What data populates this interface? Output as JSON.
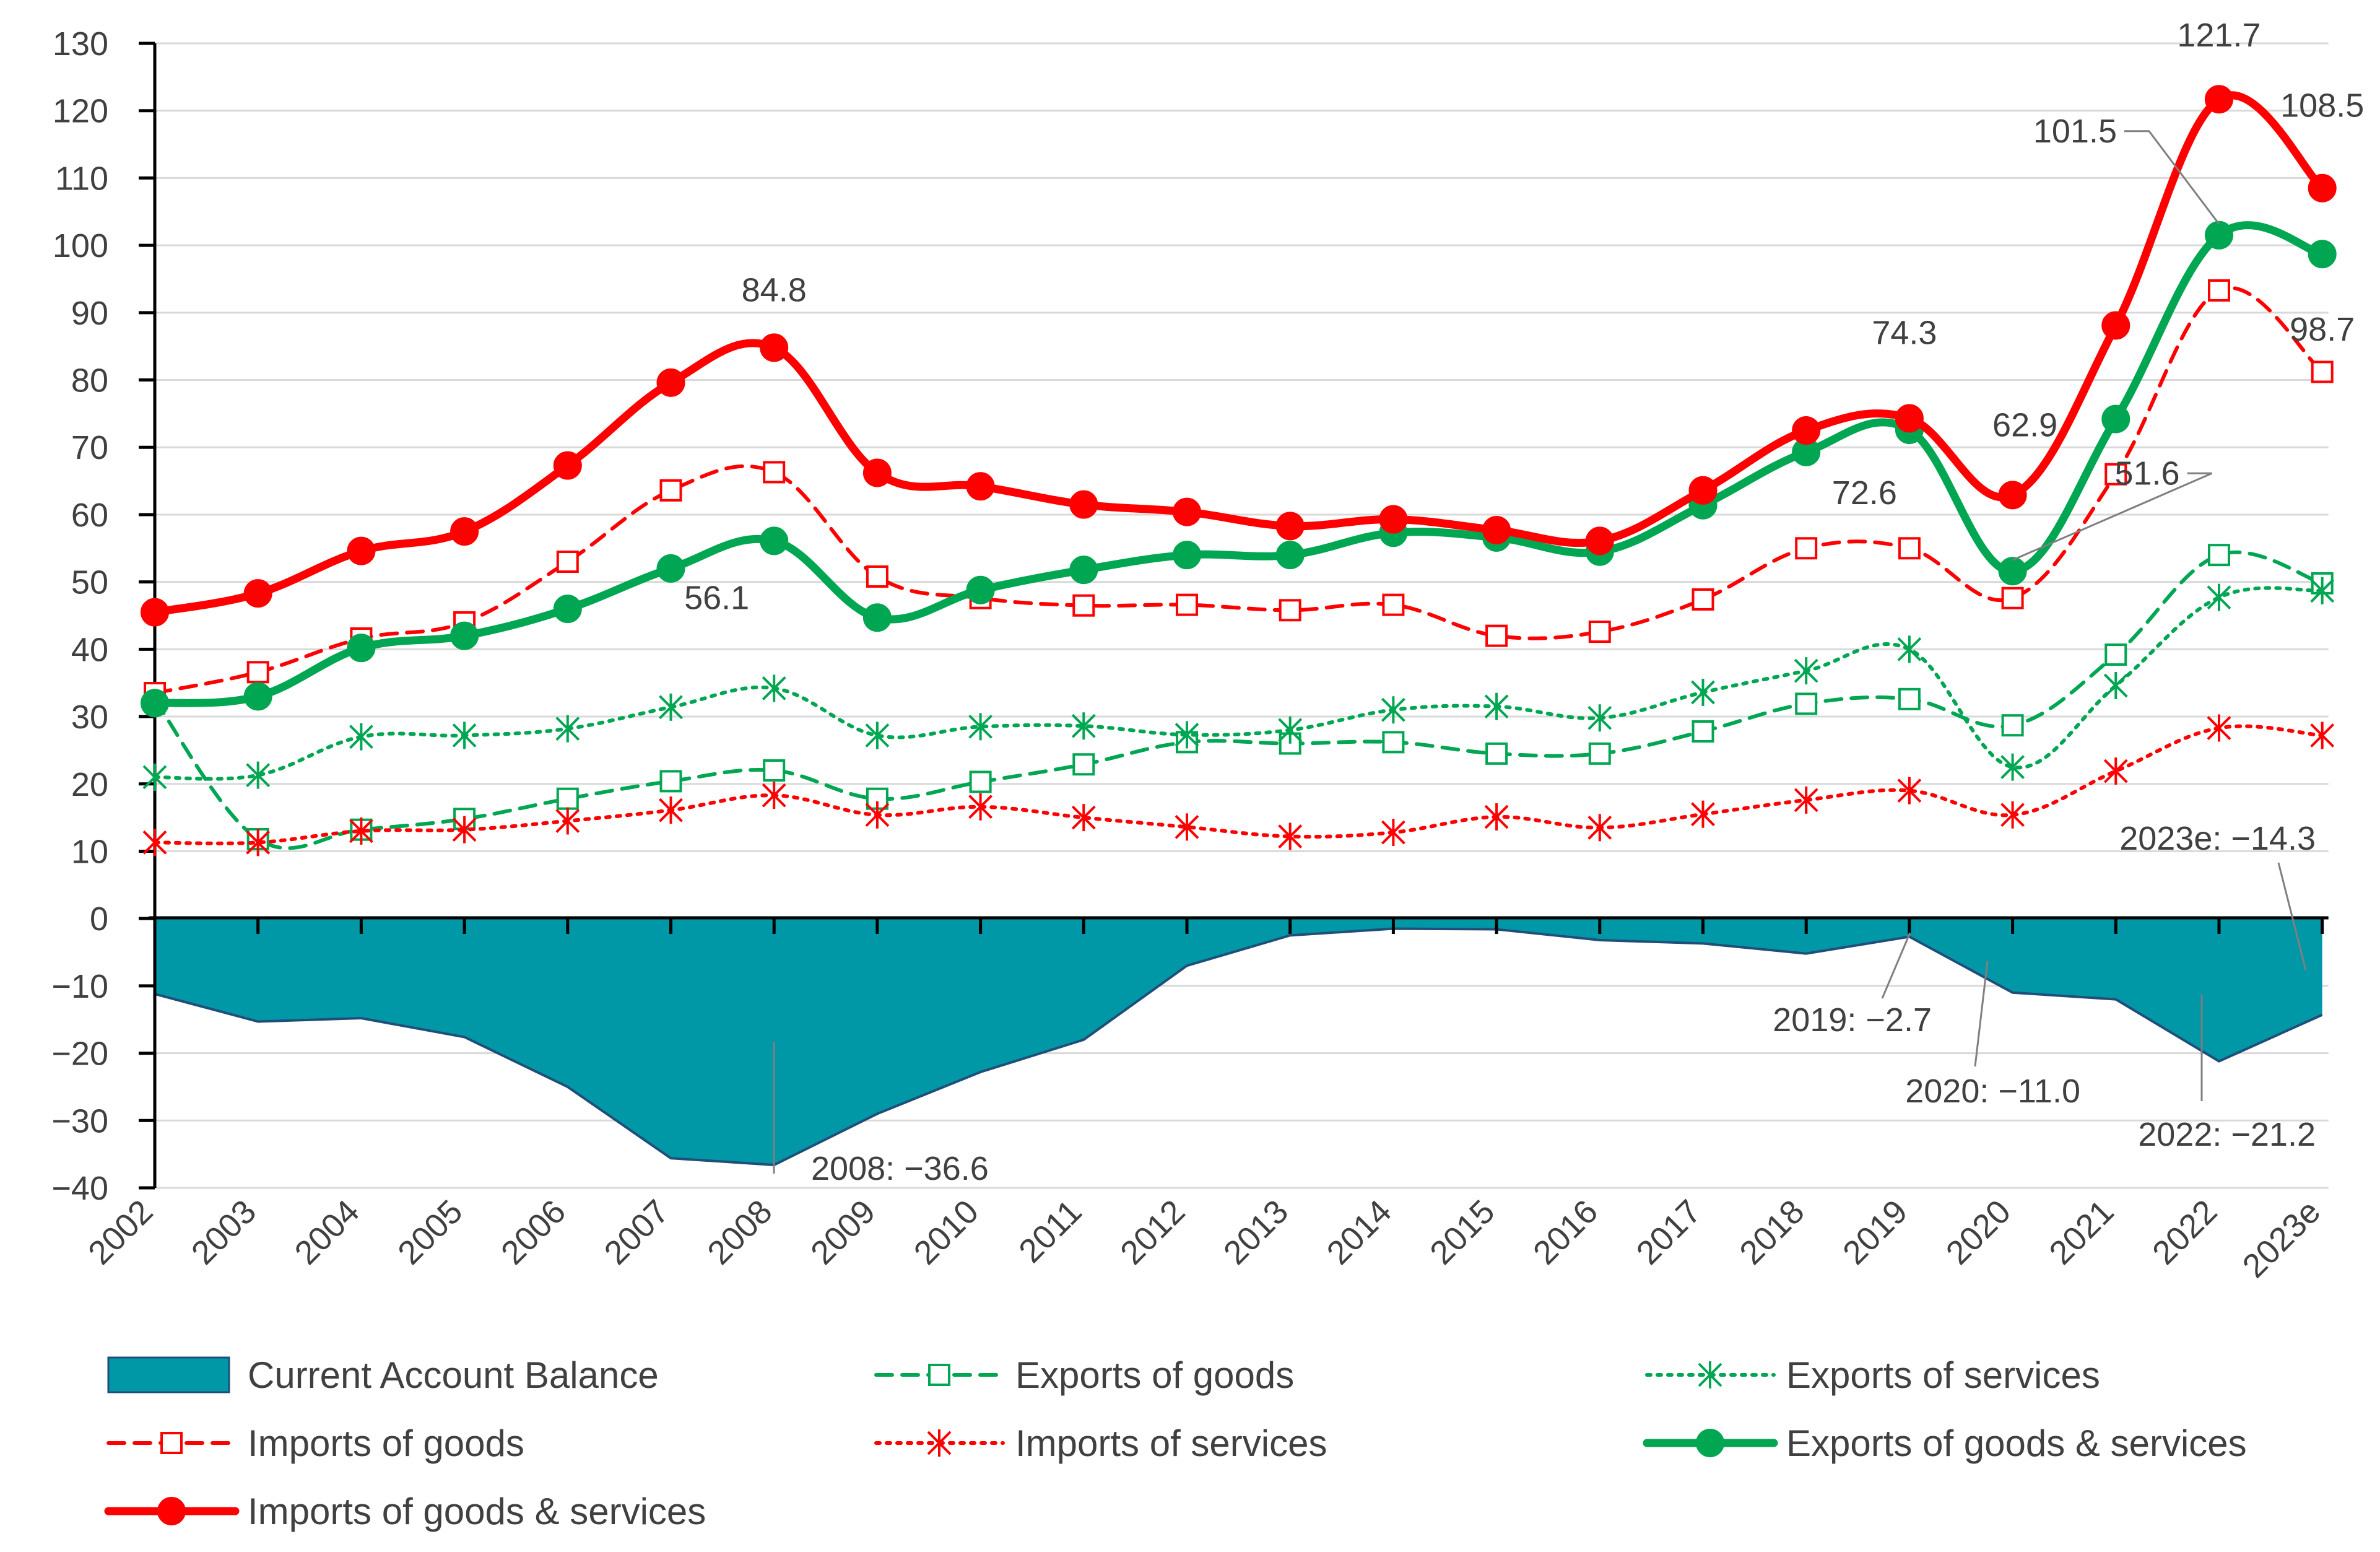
{
  "chart_data": {
    "type": "line",
    "title": "",
    "xlabel": "",
    "ylabel": "",
    "ylim": [
      -40,
      130
    ],
    "yticks": [
      130,
      120,
      110,
      100,
      90,
      80,
      70,
      60,
      50,
      40,
      30,
      20,
      10,
      0,
      -10,
      -20,
      -30,
      -40
    ],
    "ytick_labels": [
      "130",
      "120",
      "110",
      "100",
      "90",
      "80",
      "70",
      "60",
      "50",
      "40",
      "30",
      "20",
      "10",
      "0",
      "−10",
      "−20",
      "−30",
      "−40"
    ],
    "grid": true,
    "legend_position": "bottom",
    "categories": [
      "2002",
      "2003",
      "2004",
      "2005",
      "2006",
      "2007",
      "2008",
      "2009",
      "2010",
      "2011",
      "2012",
      "2013",
      "2014",
      "2015",
      "2016",
      "2017",
      "2018",
      "2019",
      "2020",
      "2021",
      "2022",
      "2023e"
    ],
    "area_series": {
      "name": "Current Account Balance",
      "color": "#0097A7",
      "edge_color": "#1F4E79",
      "values": [
        -11.2,
        -15.3,
        -14.8,
        -17.6,
        -25.0,
        -35.6,
        -36.6,
        -29.0,
        -22.8,
        -18.0,
        -7.0,
        -2.5,
        -1.5,
        -1.6,
        -3.2,
        -3.7,
        -5.2,
        -2.7,
        -11.0,
        -12.0,
        -21.2,
        -14.3
      ]
    },
    "series": [
      {
        "name": "Exports of goods",
        "color": "#00A651",
        "style": "dashed",
        "marker": "square",
        "values": [
          32.5,
          11.8,
          13.2,
          14.8,
          17.8,
          20.4,
          22.0,
          17.8,
          20.3,
          22.9,
          26.2,
          26.0,
          26.2,
          24.5,
          24.5,
          27.8,
          31.9,
          32.6,
          28.7,
          39.2,
          54.0,
          49.8
        ]
      },
      {
        "name": "Exports of services",
        "color": "#00A651",
        "style": "dotted",
        "marker": "asterisk",
        "values": [
          21.0,
          21.3,
          27.0,
          27.2,
          28.2,
          31.4,
          34.2,
          27.2,
          28.5,
          28.6,
          27.3,
          28.0,
          31.0,
          31.5,
          29.8,
          33.6,
          36.8,
          40.0,
          22.5,
          34.6,
          47.7,
          48.7
        ]
      },
      {
        "name": "Imports of goods",
        "color": "#FF0000",
        "style": "dashed",
        "marker": "square",
        "values": [
          33.5,
          36.6,
          41.6,
          44.0,
          53.0,
          63.6,
          66.3,
          50.8,
          47.6,
          46.5,
          46.6,
          45.8,
          46.6,
          42.0,
          42.6,
          47.4,
          55.0,
          55.0,
          47.6,
          66.0,
          93.3,
          81.2
        ]
      },
      {
        "name": "Imports of services",
        "color": "#FF0000",
        "style": "dotted",
        "marker": "asterisk",
        "values": [
          11.3,
          11.3,
          13.0,
          13.2,
          14.5,
          16.1,
          18.3,
          15.4,
          16.6,
          15.0,
          13.6,
          12.2,
          12.8,
          15.1,
          13.5,
          15.5,
          17.6,
          19.0,
          15.4,
          21.9,
          28.3,
          27.2
        ]
      },
      {
        "name": "Exports of goods & services",
        "color": "#00A651",
        "style": "solid",
        "marker": "circle",
        "values": [
          32.0,
          33.0,
          40.2,
          42.0,
          46.0,
          52.0,
          56.1,
          44.7,
          48.8,
          51.8,
          54.0,
          54.0,
          57.3,
          56.6,
          54.5,
          61.4,
          69.3,
          72.6,
          51.6,
          74.2,
          101.5,
          98.7
        ]
      },
      {
        "name": "Imports of goods & services",
        "color": "#FF0000",
        "style": "solid",
        "marker": "circle",
        "values": [
          45.5,
          48.3,
          54.6,
          57.5,
          67.3,
          79.6,
          84.8,
          66.2,
          64.2,
          61.5,
          60.4,
          58.3,
          59.3,
          57.7,
          56.1,
          63.6,
          72.5,
          74.3,
          62.9,
          88.1,
          121.7,
          108.5
        ]
      }
    ],
    "annotations": [
      {
        "text": "84.8",
        "series": "Imports of goods & services",
        "category": "2008"
      },
      {
        "text": "56.1",
        "series": "Exports of goods & services",
        "category": "2008"
      },
      {
        "text": "74.3",
        "series": "Imports of goods & services",
        "category": "2019"
      },
      {
        "text": "72.6",
        "series": "Exports of goods & services",
        "category": "2019"
      },
      {
        "text": "62.9",
        "series": "Imports of goods & services",
        "category": "2020"
      },
      {
        "text": "51.6",
        "series": "Exports of goods & services",
        "category": "2020"
      },
      {
        "text": "121.7",
        "series": "Imports of goods & services",
        "category": "2022"
      },
      {
        "text": "101.5",
        "series": "Exports of goods & services",
        "category": "2022"
      },
      {
        "text": "108.5",
        "series": "Imports of goods & services",
        "category": "2023e"
      },
      {
        "text": "98.7",
        "series": "Exports of goods & services",
        "category": "2023e"
      },
      {
        "text": "2008: −36.6",
        "series": "Current Account Balance",
        "category": "2008"
      },
      {
        "text": "2019: −2.7",
        "series": "Current Account Balance",
        "category": "2019"
      },
      {
        "text": "2020: −11.0",
        "series": "Current Account Balance",
        "category": "2020"
      },
      {
        "text": "2022: −21.2",
        "series": "Current Account Balance",
        "category": "2022"
      },
      {
        "text": "2023e: −14.3",
        "series": "Current Account Balance",
        "category": "2023e"
      }
    ],
    "legend": [
      "Current Account Balance",
      "Exports of goods",
      "Exports of services",
      "Imports of goods",
      "Imports of services",
      "Exports of goods & services",
      "Imports of goods & services"
    ]
  }
}
